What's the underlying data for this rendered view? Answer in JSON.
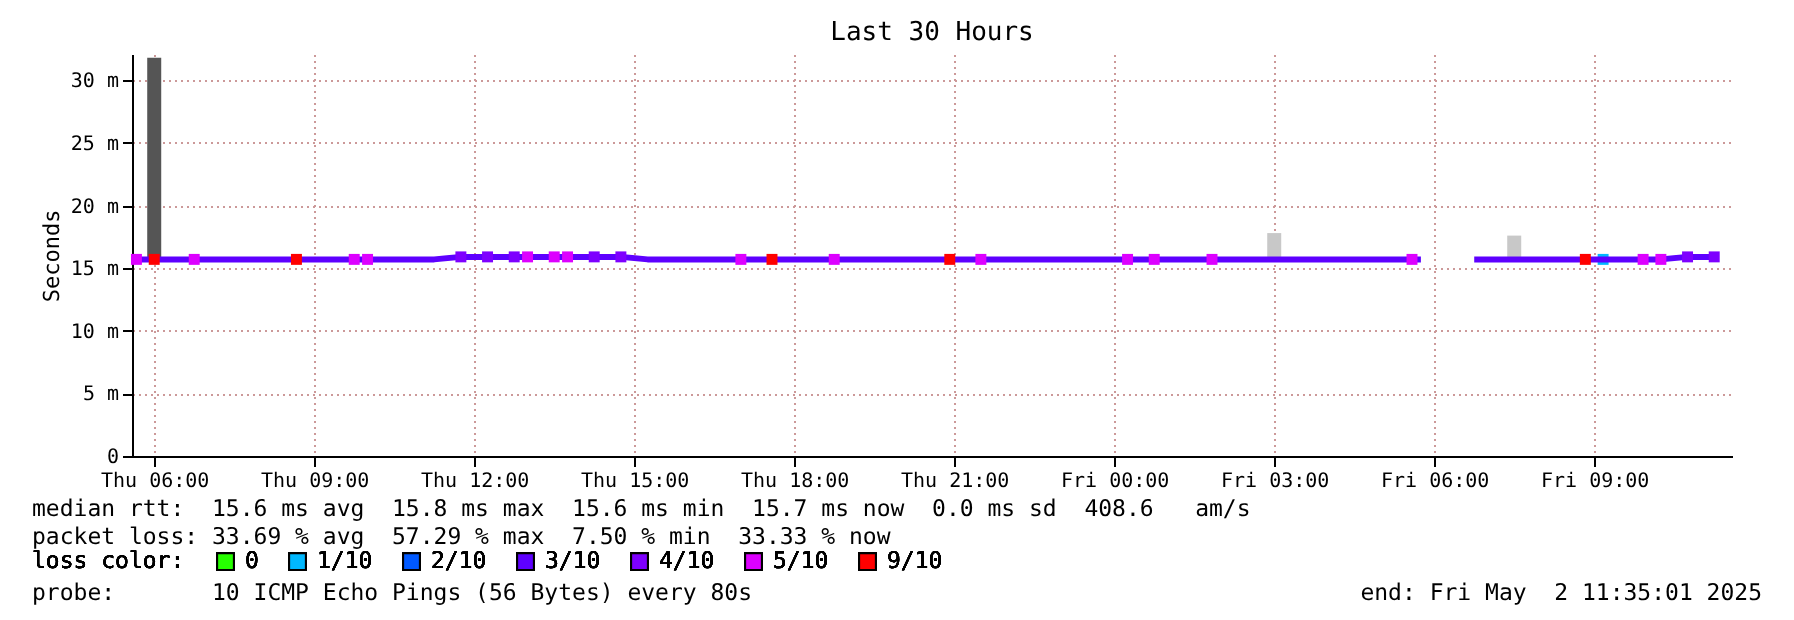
{
  "chart_data": {
    "type": "scatter",
    "title": "Last 30 Hours",
    "ylabel": "Seconds",
    "legend_title": "loss color:",
    "legend": "bottom left",
    "marker": "square",
    "line_style": "solid",
    "grid": true,
    "xlim": [
      "2025-05-01T05:35",
      "2025-05-02T11:35"
    ],
    "xticks": [
      {
        "value": "2025-05-01T06:00",
        "label": "Thu 06:00"
      },
      {
        "value": "2025-05-01T09:00",
        "label": "Thu 09:00"
      },
      {
        "value": "2025-05-01T12:00",
        "label": "Thu 12:00"
      },
      {
        "value": "2025-05-01T15:00",
        "label": "Thu 15:00"
      },
      {
        "value": "2025-05-01T18:00",
        "label": "Thu 18:00"
      },
      {
        "value": "2025-05-01T21:00",
        "label": "Thu 21:00"
      },
      {
        "value": "2025-05-02T00:00",
        "label": "Fri 00:00"
      },
      {
        "value": "2025-05-02T03:00",
        "label": "Fri 03:00"
      },
      {
        "value": "2025-05-02T06:00",
        "label": "Fri 06:00"
      },
      {
        "value": "2025-05-02T09:00",
        "label": "Fri 09:00"
      }
    ],
    "ylim": [
      0,
      32.1
    ],
    "yticks": [
      0,
      {
        "value": 5,
        "label": "5 m"
      },
      {
        "value": 10,
        "label": "10 m"
      },
      {
        "value": 15,
        "label": "15 m"
      },
      {
        "value": 20,
        "label": "20 m"
      },
      {
        "value": 25,
        "label": "25 m"
      },
      {
        "value": 30,
        "label": "30 m"
      }
    ],
    "series": [
      {
        "type": "bar",
        "x": [
          "2025-05-01T06:00",
          "2025-05-02T03:00",
          "2025-05-02T07:30"
        ],
        "base": [
          15.5,
          15.7,
          15.7
        ],
        "values": [
          16.3,
          2.1,
          1.9
        ],
        "colors": [
          "#555555",
          "#c8c8c8",
          "#c8c8c8"
        ]
      },
      {
        "name": "0",
        "color": "#26ff00"
      },
      {
        "name": "1/10",
        "color": "#00b8ff",
        "x": [
          "2025-05-02T09:10"
        ],
        "values": [
          15.7
        ]
      },
      {
        "name": "2/10",
        "color": "#0059ff"
      },
      {
        "name": "3/10",
        "type": "line",
        "marker": "none",
        "color": "#5e00ff",
        "x": [
          "2025-05-01T05:45",
          "2025-05-01T06:15",
          "2025-05-01T06:45",
          "2025-05-01T07:15",
          "2025-05-01T07:45",
          "2025-05-01T08:15",
          "2025-05-01T08:45",
          "2025-05-01T09:15",
          "2025-05-01T09:45",
          "2025-05-01T10:15",
          "2025-05-01T10:45",
          "2025-05-01T11:15",
          "2025-05-01T11:45",
          "2025-05-01T12:15",
          "2025-05-01T12:45",
          "2025-05-01T13:15",
          "2025-05-01T13:45",
          "2025-05-01T14:15",
          "2025-05-01T14:45",
          "2025-05-01T15:15",
          "2025-05-01T15:45",
          "2025-05-01T16:15",
          "2025-05-01T16:45",
          "2025-05-01T17:15",
          "2025-05-01T17:45",
          "2025-05-01T18:15",
          "2025-05-01T18:45",
          "2025-05-01T19:15",
          "2025-05-01T19:45",
          "2025-05-01T20:15",
          "2025-05-01T20:45",
          "2025-05-01T21:15",
          "2025-05-01T21:45",
          "2025-05-01T22:15",
          "2025-05-01T22:45",
          "2025-05-01T23:15",
          "2025-05-01T23:45",
          "2025-05-02T00:15",
          "2025-05-02T00:45",
          "2025-05-02T01:15",
          "2025-05-02T01:45",
          "2025-05-02T02:15",
          "2025-05-02T02:45",
          "2025-05-02T03:15",
          "2025-05-02T03:45",
          "2025-05-02T04:15",
          "2025-05-02T04:45",
          "2025-05-02T05:15",
          "2025-05-02T05:45",
          "2025-05-02T06:15",
          "2025-05-02T06:45",
          "2025-05-02T07:15",
          "2025-05-02T07:45",
          "2025-05-02T08:15",
          "2025-05-02T08:45",
          "2025-05-02T09:15",
          "2025-05-02T09:45",
          "2025-05-02T10:15",
          "2025-05-02T10:45",
          "2025-05-02T11:15"
        ],
        "values": [
          15.7,
          15.7,
          15.7,
          15.7,
          15.7,
          15.7,
          15.7,
          15.7,
          15.7,
          15.7,
          15.7,
          15.7,
          15.9,
          15.9,
          15.9,
          15.9,
          15.9,
          15.9,
          15.9,
          15.7,
          15.7,
          15.7,
          15.7,
          15.7,
          15.7,
          15.7,
          15.7,
          15.7,
          15.7,
          15.7,
          15.7,
          15.7,
          15.7,
          15.7,
          15.7,
          15.7,
          15.7,
          15.7,
          15.7,
          15.7,
          15.7,
          15.7,
          15.7,
          15.7,
          15.7,
          15.7,
          15.7,
          15.7,
          15.7,
          null,
          15.7,
          15.7,
          15.7,
          15.7,
          15.7,
          15.7,
          15.7,
          15.7,
          15.9,
          15.9
        ]
      },
      {
        "name": "4/10",
        "color": "#7e00ff",
        "x": [
          "2025-05-01T11:45",
          "2025-05-01T12:15",
          "2025-05-01T12:45",
          "2025-05-01T14:15",
          "2025-05-01T14:45",
          "2025-05-02T10:45",
          "2025-05-02T11:15"
        ],
        "values": [
          15.9,
          15.9,
          15.9,
          15.9,
          15.9,
          15.9,
          15.9
        ]
      },
      {
        "name": "5/10",
        "color": "#dd00ff",
        "x": [
          "2025-05-01T05:40",
          "2025-05-01T06:45",
          "2025-05-01T09:45",
          "2025-05-01T10:00",
          "2025-05-01T13:00",
          "2025-05-01T13:30",
          "2025-05-01T13:45",
          "2025-05-01T17:00",
          "2025-05-01T18:45",
          "2025-05-01T21:30",
          "2025-05-02T00:15",
          "2025-05-02T00:45",
          "2025-05-02T01:50",
          "2025-05-02T05:35",
          "2025-05-02T09:55",
          "2025-05-02T10:15"
        ],
        "values": [
          15.7,
          15.7,
          15.7,
          15.7,
          15.9,
          15.9,
          15.9,
          15.7,
          15.7,
          15.7,
          15.7,
          15.7,
          15.7,
          15.7,
          15.7,
          15.7
        ]
      },
      {
        "name": "9/10",
        "color": "#ff0000",
        "x": [
          "2025-05-01T06:00",
          "2025-05-01T08:40",
          "2025-05-01T17:35",
          "2025-05-01T20:55",
          "2025-05-02T08:50"
        ],
        "values": [
          15.7,
          15.7,
          15.7,
          15.7,
          15.7
        ]
      }
    ],
    "annotations": [
      "median rtt:  15.6 ms avg  15.8 ms max  15.6 ms min  15.7 ms now  0.0 ms sd  408.6   am/s",
      "packet loss: 33.69 % avg  57.29 % max  7.50 % min  33.33 % now",
      "probe:       10 ICMP Echo Pings (56 Bytes) every 80s",
      "end: Fri May  2 11:35:01 2025"
    ]
  }
}
